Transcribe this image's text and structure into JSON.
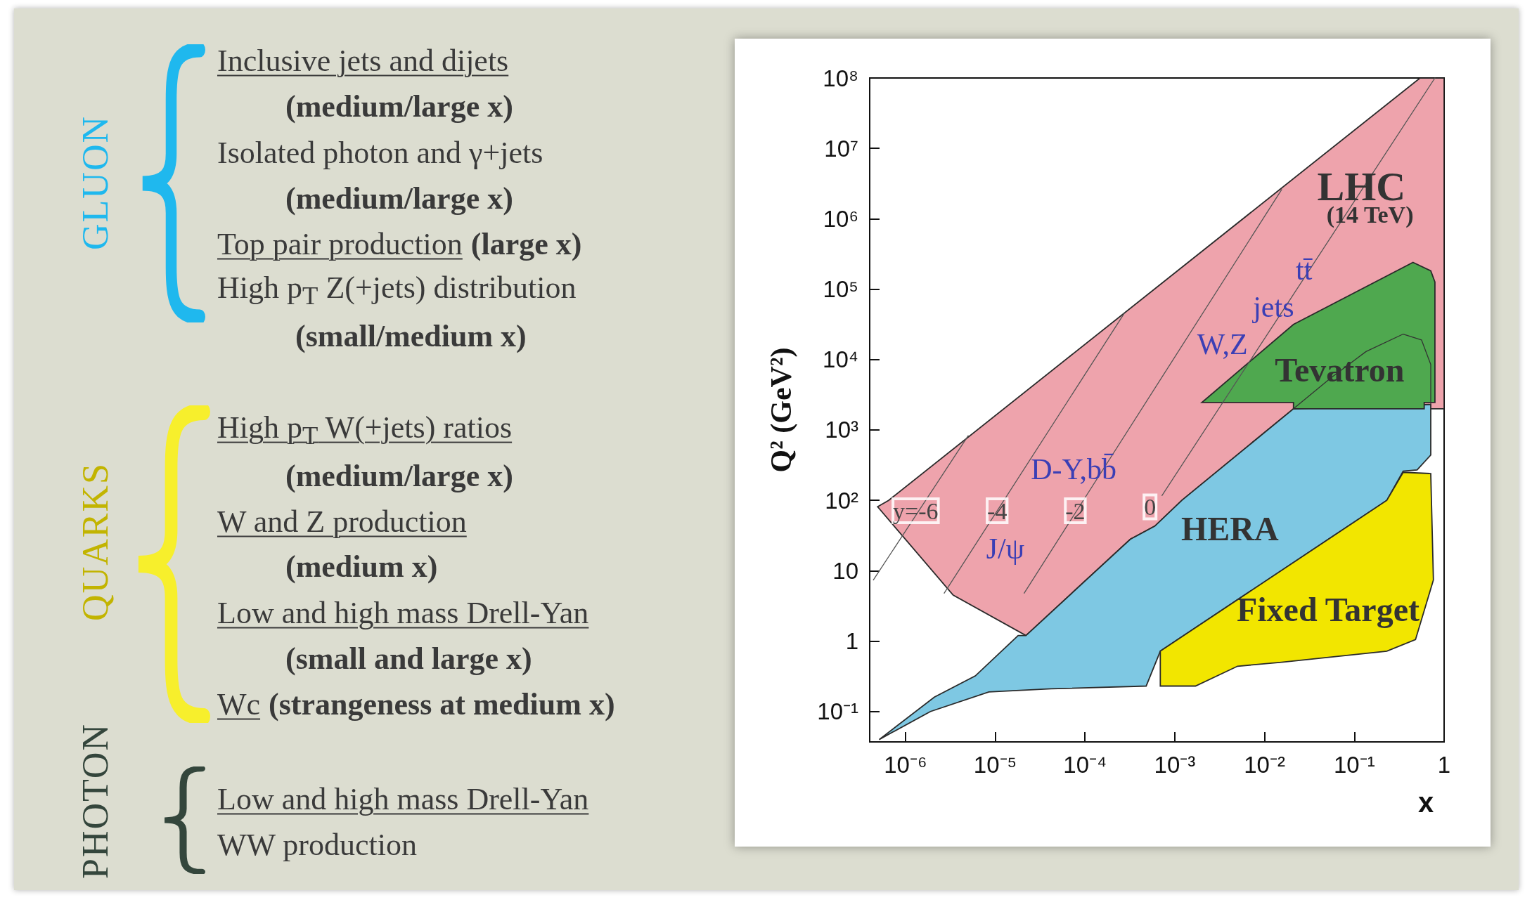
{
  "chart_data": [
    {
      "type": "other",
      "annotations": [
        "GLUON",
        "Inclusive jets and dijets",
        "(medium/large x)",
        "Isolated photon and γ+jets",
        "(medium/large x)",
        "Top pair production",
        "(large x)",
        "High p$_{T}$ Z(+jets) distribution",
        "(small/medium x)",
        "QUARKS",
        "High p$_{T}$ W(+jets) ratios",
        "(medium/large x)",
        "W and Z production",
        "(medium x)",
        "Low and high mass Drell-Yan",
        "(small and large x)",
        "Wc",
        "(strangeness at medium x)",
        "PHOTON",
        "Low and high mass Drell-Yan",
        "WW production"
      ]
    },
    {
      "type": "area",
      "xlabel": "x",
      "ylabel": "Q² (GeV²)",
      "log": "xy",
      "grid": false,
      "xlim": [
        4e-07,
        1
      ],
      "ylim": [
        0.037,
        100000000.0
      ],
      "xticks": [
        {
          "value": 1e-06,
          "label": "10⁻⁶"
        },
        {
          "value": 1e-05,
          "label": "10⁻⁵"
        },
        {
          "value": 0.0001,
          "label": "10⁻⁴"
        },
        {
          "value": 0.001,
          "label": "10⁻³"
        },
        {
          "value": 0.01,
          "label": "10⁻²"
        },
        {
          "value": 0.1,
          "label": "10⁻¹"
        },
        1
      ],
      "yticks": [
        {
          "value": 0.1,
          "label": "10⁻¹"
        },
        1,
        10,
        {
          "value": 100,
          "label": "10²"
        },
        {
          "value": 1000,
          "label": "10³"
        },
        {
          "value": 10000,
          "label": "10⁴"
        },
        {
          "value": 100000,
          "label": "10⁵"
        },
        {
          "value": 1000000,
          "label": "10⁶"
        },
        {
          "value": 10000000,
          "label": "10⁷"
        },
        {
          "value": 100000000,
          "label": "10⁸"
        }
      ],
      "series": [
        {
          "type": "area",
          "color": "#eea3ac",
          "x": [
            4.9e-07,
            6.5e-07,
            0.54,
            1,
            1,
            0.021,
            0.0012,
            0.0006,
            0.00032,
            2.2e-05,
            3.4e-06
          ],
          "values": [
            81,
            100,
            100000000.0,
            100000000.0,
            2000,
            2000,
            100,
            43,
            28,
            1.2,
            4.5
          ]
        },
        {
          "type": "area",
          "color": "#7ec8e3",
          "x": [
            5.1e-07,
            1.9e-06,
            8.5e-06,
            4.2e-05,
            0.00048,
            0.00069,
            0.23,
            0.35,
            0.5,
            0.71,
            0.71,
            0.021,
            0.0012,
            0.0006,
            0.00032,
            2.2e-05,
            1.8e-05,
            6e-06,
            2.1e-06
          ],
          "values": [
            0.04,
            0.1,
            0.19,
            0.21,
            0.23,
            0.72,
            100,
            260,
            270,
            440,
            2300,
            2000,
            100,
            43,
            28,
            1.2,
            1.2,
            0.32,
            0.16
          ]
        },
        {
          "type": "area",
          "color": "#f2e600",
          "x": [
            0.00069,
            0.00069,
            0.0017,
            0.005,
            0.0155,
            0.23,
            0.48,
            0.76,
            0.71,
            0.35,
            0.23
          ],
          "values": [
            0.72,
            0.23,
            0.23,
            0.44,
            0.5,
            0.72,
            1.05,
            7.4,
            240,
            250,
            100
          ]
        },
        {
          "type": "area",
          "color": "#4fa84f",
          "x": [
            0.002,
            0.021,
            0.45,
            0.71,
            0.79,
            0.79,
            0.6,
            0.6,
            0.021,
            0.021
          ],
          "values": [
            2450,
            31600,
            240000,
            182000,
            126000,
            2450,
            2450,
            2000,
            2000,
            2450
          ]
        },
        {
          "type": "line",
          "color": "#333333",
          "x": [
            0.021,
            0.055,
            0.135,
            0.35,
            0.56,
            0.71,
            0.71
          ],
          "values": [
            2000,
            5500,
            13000,
            23000,
            19000,
            8500,
            2300
          ]
        },
        {
          "type": "line",
          "color": "#555555",
          "x": [
            4.4e-07,
            5e-06
          ],
          "values": [
            7.4,
            830
          ]
        },
        {
          "type": "line",
          "color": "#555555",
          "x": [
            2.7e-06,
            0.000275
          ],
          "values": [
            4.8,
            45700
          ]
        },
        {
          "type": "line",
          "color": "#555555",
          "x": [
            2.1e-05,
            0.0155
          ],
          "values": [
            4.8,
            2600000
          ]
        },
        {
          "type": "line",
          "color": "#555555",
          "x": [
            0.00072,
            0.79
          ],
          "values": [
            117,
            100000000.0
          ]
        }
      ],
      "annotations": [
        {
          "text": "y=-6",
          "x": 1.3e-06,
          "y": 71
        },
        {
          "text": "-4",
          "x": 1.05e-05,
          "y": 71
        },
        {
          "text": "-2",
          "x": 7.8e-05,
          "y": 71
        },
        "0",
        "J/ψ",
        "D-Y,bb̄",
        "W,Z",
        "jets",
        "tt̄",
        "LHC",
        "(14 TeV)",
        "Tevatron",
        "HERA",
        "Fixed Target"
      ]
    }
  ]
}
